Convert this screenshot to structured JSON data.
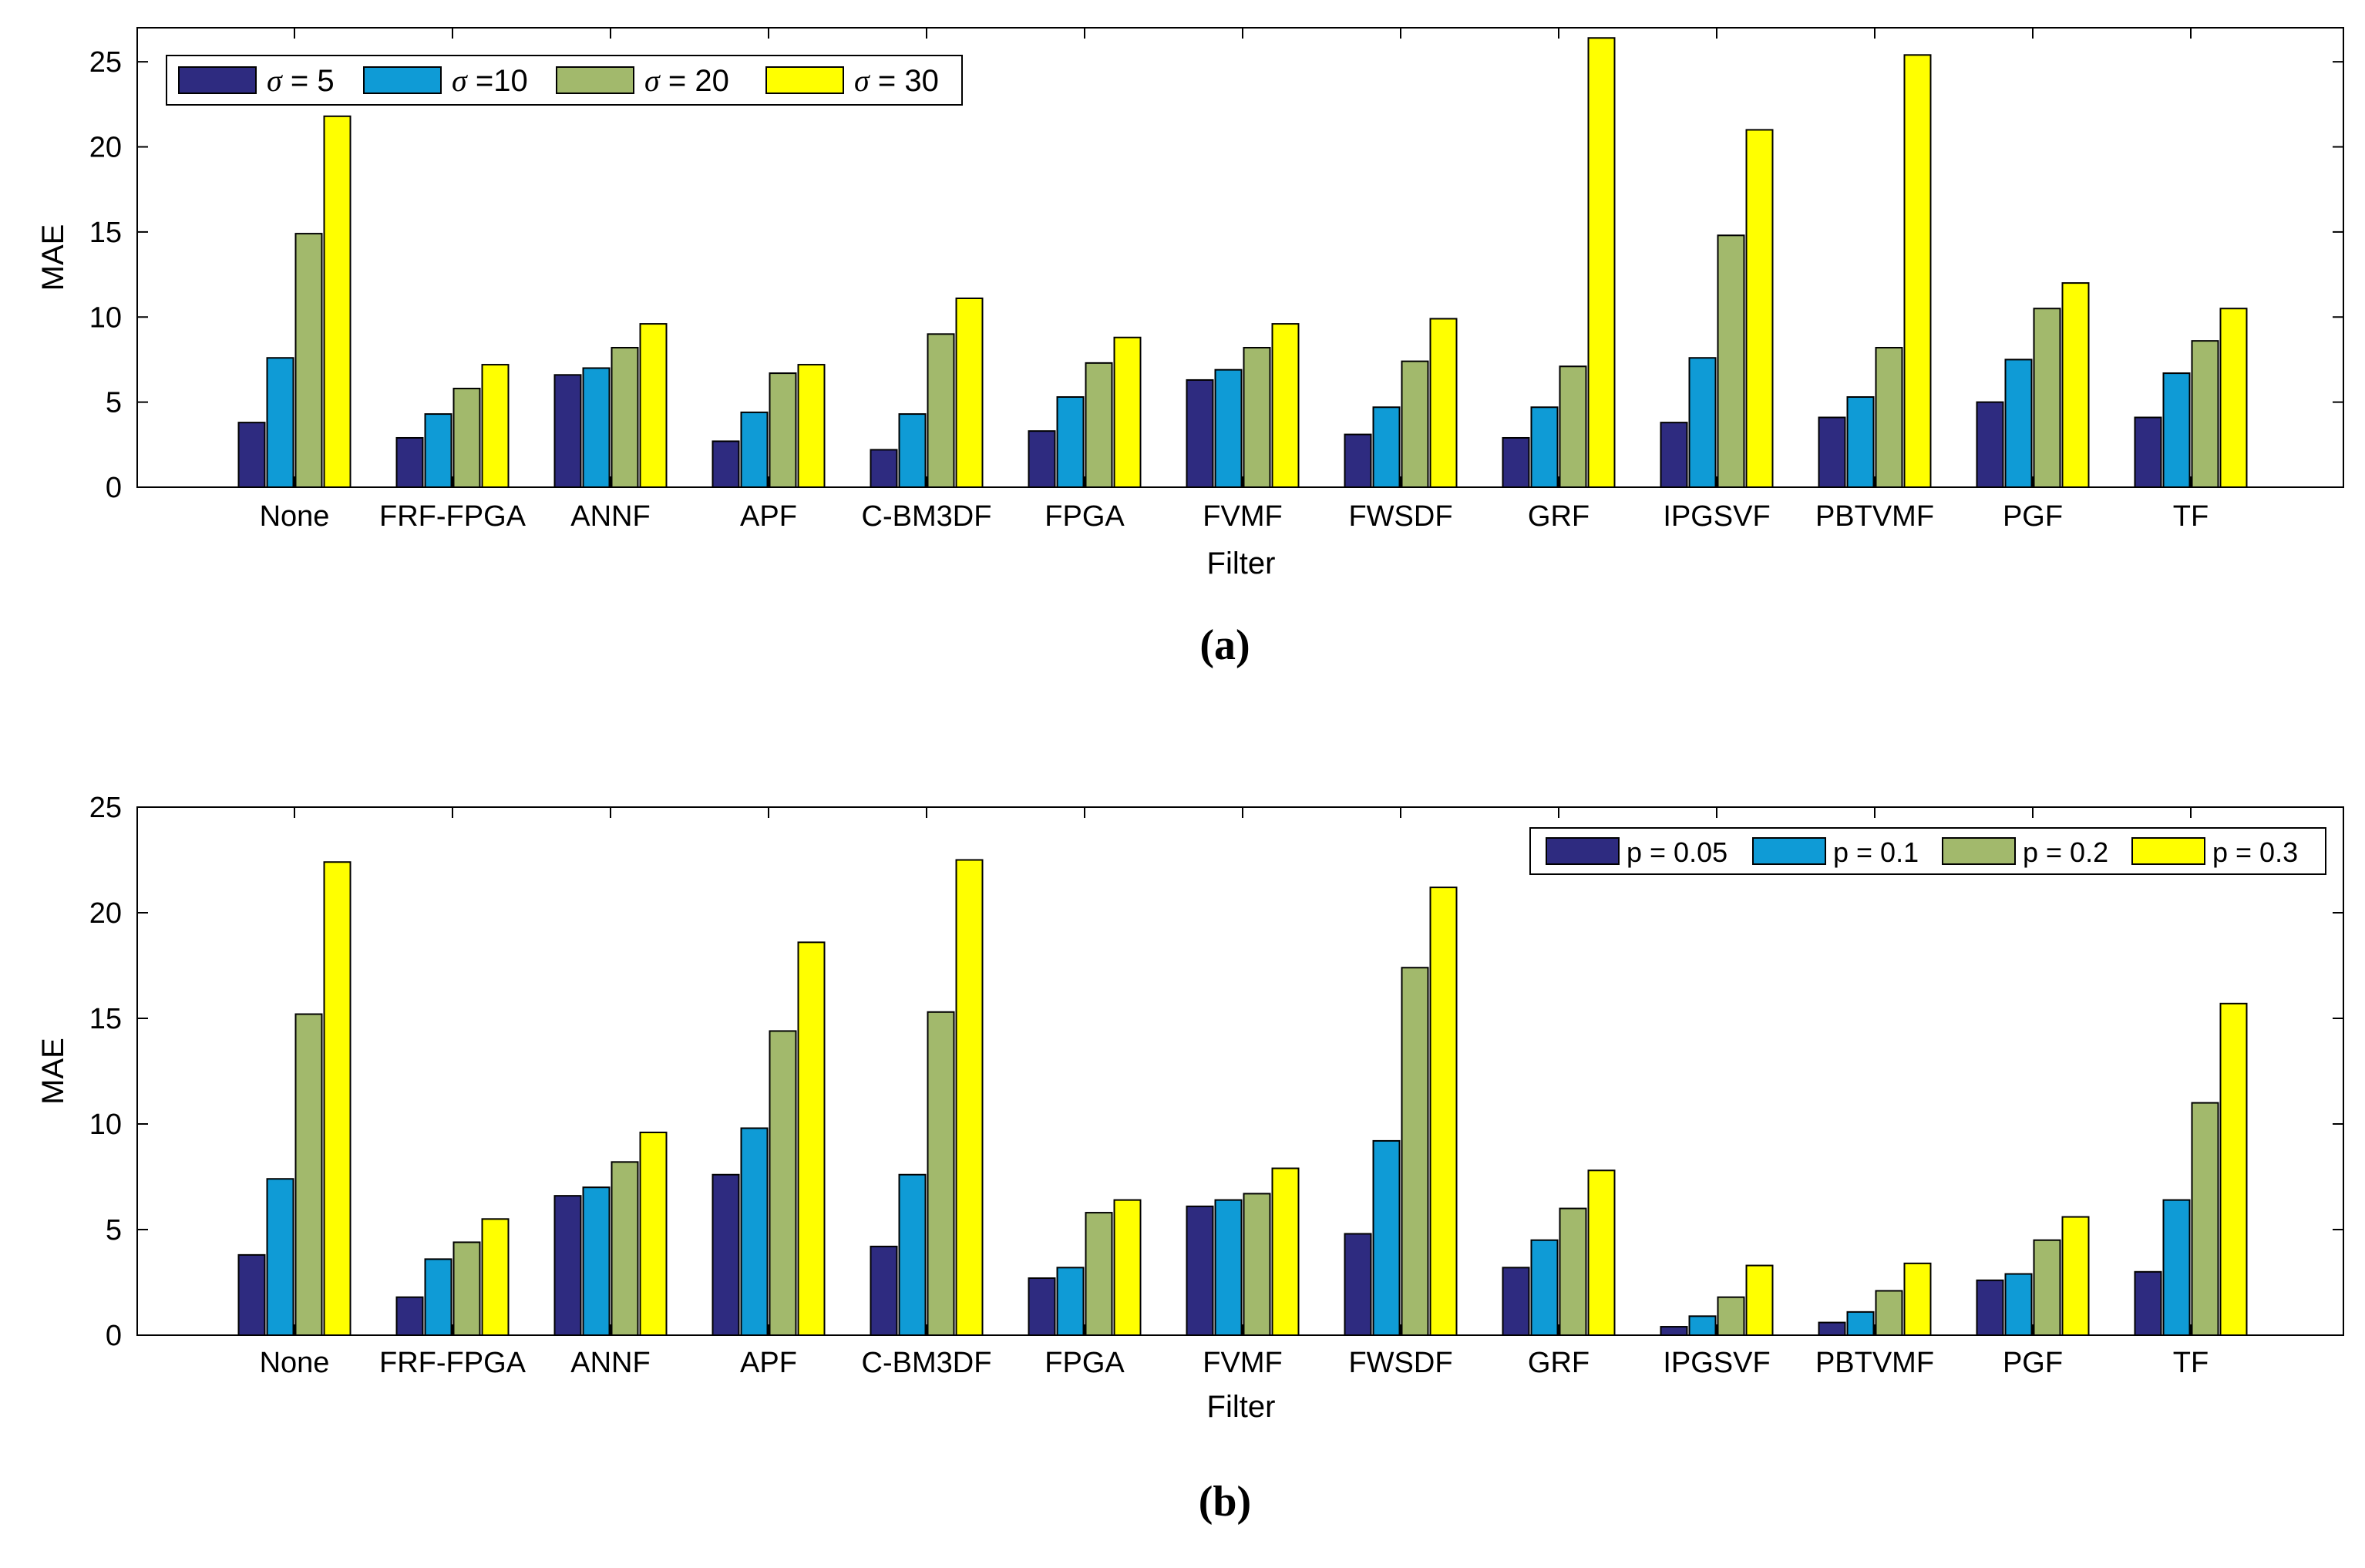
{
  "colors": {
    "s1": "#2e2b80",
    "s2": "#0f9bd6",
    "s3": "#a2b96c",
    "s4": "#ffff00"
  },
  "chart_data": [
    {
      "type": "bar",
      "panel": "(a)",
      "xlabel": "Filter",
      "ylabel": "MAE",
      "ylim": [
        0,
        27
      ],
      "yticks": [
        0,
        5,
        10,
        15,
        20,
        25
      ],
      "legend_position": "top-left",
      "categories": [
        "None",
        "FRF-FPGA",
        "ANNF",
        "APF",
        "C-BM3DF",
        "FPGA",
        "FVMF",
        "FWSDF",
        "GRF",
        "IPGSVF",
        "PBTVMF",
        "PGF",
        "TF"
      ],
      "series": [
        {
          "sym": "σ",
          "name": " = 5",
          "values": [
            3.8,
            2.9,
            6.6,
            2.7,
            2.2,
            3.3,
            6.3,
            3.1,
            2.9,
            3.8,
            4.1,
            5.0,
            4.1
          ]
        },
        {
          "sym": "σ",
          "name": " =10",
          "values": [
            7.6,
            4.3,
            7.0,
            4.4,
            4.3,
            5.3,
            6.9,
            4.7,
            4.7,
            7.6,
            5.3,
            7.5,
            6.7
          ]
        },
        {
          "sym": "σ",
          "name": " = 20",
          "values": [
            14.9,
            5.8,
            8.2,
            6.7,
            9.0,
            7.3,
            8.2,
            7.4,
            7.1,
            14.8,
            8.2,
            10.5,
            8.6
          ]
        },
        {
          "sym": "σ",
          "name": " = 30",
          "values": [
            21.8,
            7.2,
            9.6,
            7.2,
            11.1,
            8.8,
            9.6,
            9.9,
            26.4,
            21.0,
            25.4,
            12.0,
            10.5
          ]
        }
      ]
    },
    {
      "type": "bar",
      "panel": "(b)",
      "xlabel": "Filter",
      "ylabel": "MAE",
      "ylim": [
        0,
        25
      ],
      "yticks": [
        0,
        5,
        10,
        15,
        20,
        25
      ],
      "legend_position": "top-right",
      "categories": [
        "None",
        "FRF-FPGA",
        "ANNF",
        "APF",
        "C-BM3DF",
        "FPGA",
        "FVMF",
        "FWSDF",
        "GRF",
        "IPGSVF",
        "PBTVMF",
        "PGF",
        "TF"
      ],
      "series": [
        {
          "name": "p = 0.05",
          "values": [
            3.8,
            1.8,
            6.6,
            7.6,
            4.2,
            2.7,
            6.1,
            4.8,
            3.2,
            0.4,
            0.6,
            2.6,
            3.0
          ]
        },
        {
          "name": "p = 0.1",
          "values": [
            7.4,
            3.6,
            7.0,
            9.8,
            7.6,
            3.2,
            6.4,
            9.2,
            4.5,
            0.9,
            1.1,
            2.9,
            6.4
          ]
        },
        {
          "name": "p = 0.2",
          "values": [
            15.2,
            4.4,
            8.2,
            14.4,
            15.3,
            5.8,
            6.7,
            17.4,
            6.0,
            1.8,
            2.1,
            4.5,
            11.0
          ]
        },
        {
          "name": "p = 0.3",
          "values": [
            22.4,
            5.5,
            9.6,
            18.6,
            22.5,
            6.4,
            7.9,
            21.2,
            7.8,
            3.3,
            3.4,
            5.6,
            15.7
          ]
        }
      ]
    }
  ]
}
